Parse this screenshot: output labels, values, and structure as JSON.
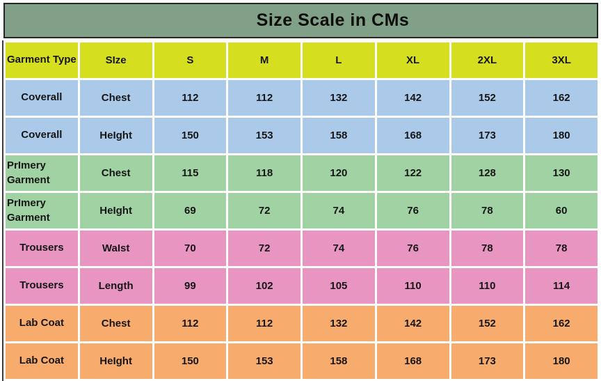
{
  "title": "Size Scale in CMs",
  "colors": {
    "title_bg": "#80A187",
    "title_border": "#262626",
    "header_bg": "#D6DE20",
    "row_blue": "#ABCAE9",
    "row_green": "#A0D2A4",
    "row_pink": "#E896C1",
    "row_orange": "#F7AB6C",
    "cell_gap": "#FFFFFF",
    "text": "#161616"
  },
  "chart_data": {
    "type": "table",
    "title": "Size Scale in CMs",
    "columns": [
      "Garment Type",
      "SIze",
      "S",
      "M",
      "L",
      "XL",
      "2XL",
      "3XL"
    ],
    "row_colors": [
      "blue",
      "blue",
      "green",
      "green",
      "pink",
      "pink",
      "orange",
      "orange"
    ],
    "rows": [
      {
        "garment": "Coverall",
        "measure": "Chest",
        "values": [
          112,
          112,
          132,
          142,
          152,
          162
        ]
      },
      {
        "garment": "Coverall",
        "measure": "HeIght",
        "values": [
          150,
          153,
          158,
          168,
          173,
          180
        ]
      },
      {
        "garment": "PrImery Garment",
        "measure": "Chest",
        "values": [
          115,
          118,
          120,
          122,
          128,
          130
        ]
      },
      {
        "garment": "PrImery Garment",
        "measure": "HeIght",
        "values": [
          69,
          72,
          74,
          76,
          78,
          60
        ]
      },
      {
        "garment": "Trousers",
        "measure": "WaIst",
        "values": [
          70,
          72,
          74,
          76,
          78,
          78
        ]
      },
      {
        "garment": "Trousers",
        "measure": "Length",
        "values": [
          99,
          102,
          105,
          110,
          110,
          114
        ]
      },
      {
        "garment": "Lab Coat",
        "measure": "Chest",
        "values": [
          112,
          112,
          132,
          142,
          152,
          162
        ]
      },
      {
        "garment": "Lab Coat",
        "measure": "HeIght",
        "values": [
          150,
          153,
          158,
          168,
          173,
          180
        ]
      }
    ]
  }
}
